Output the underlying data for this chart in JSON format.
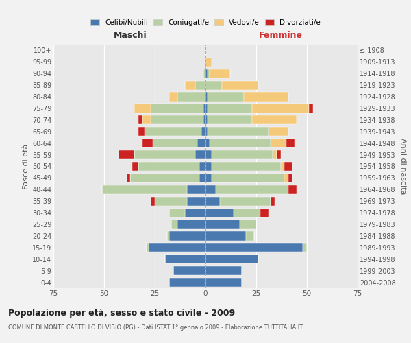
{
  "age_groups": [
    "100+",
    "95-99",
    "90-94",
    "85-89",
    "80-84",
    "75-79",
    "70-74",
    "65-69",
    "60-64",
    "55-59",
    "50-54",
    "45-49",
    "40-44",
    "35-39",
    "30-34",
    "25-29",
    "20-24",
    "15-19",
    "10-14",
    "5-9",
    "0-4"
  ],
  "birth_years": [
    "≤ 1908",
    "1909-1913",
    "1914-1918",
    "1919-1923",
    "1924-1928",
    "1929-1933",
    "1934-1938",
    "1939-1943",
    "1944-1948",
    "1949-1953",
    "1954-1958",
    "1959-1963",
    "1964-1968",
    "1969-1973",
    "1974-1978",
    "1979-1983",
    "1984-1988",
    "1989-1993",
    "1994-1998",
    "1999-2003",
    "2004-2008"
  ],
  "colors": {
    "celibi": "#4a79b0",
    "coniugati": "#b8cfa4",
    "vedovi": "#f5c97a",
    "divorziati": "#cc2222"
  },
  "maschi": {
    "celibi": [
      0,
      0,
      0,
      0,
      0,
      1,
      1,
      2,
      4,
      5,
      3,
      3,
      9,
      9,
      10,
      14,
      18,
      28,
      20,
      16,
      18
    ],
    "coniugati": [
      0,
      0,
      1,
      5,
      14,
      26,
      26,
      28,
      22,
      30,
      30,
      34,
      42,
      16,
      8,
      3,
      1,
      1,
      0,
      0,
      0
    ],
    "vedovi": [
      0,
      0,
      0,
      5,
      4,
      8,
      4,
      0,
      0,
      0,
      0,
      0,
      0,
      0,
      0,
      0,
      0,
      0,
      0,
      0,
      0
    ],
    "divorziati": [
      0,
      0,
      0,
      0,
      0,
      0,
      2,
      3,
      5,
      8,
      3,
      2,
      0,
      2,
      0,
      0,
      0,
      0,
      0,
      0,
      0
    ]
  },
  "femmine": {
    "celibi": [
      0,
      0,
      1,
      0,
      1,
      1,
      1,
      1,
      2,
      3,
      3,
      3,
      5,
      7,
      14,
      17,
      20,
      48,
      26,
      18,
      18
    ],
    "coniugati": [
      0,
      0,
      1,
      8,
      18,
      22,
      22,
      30,
      30,
      30,
      34,
      36,
      36,
      25,
      13,
      8,
      4,
      2,
      0,
      0,
      0
    ],
    "vedovi": [
      0,
      3,
      10,
      18,
      22,
      28,
      22,
      10,
      8,
      2,
      2,
      2,
      0,
      0,
      0,
      0,
      0,
      0,
      0,
      0,
      0
    ],
    "divorziati": [
      0,
      0,
      0,
      0,
      0,
      2,
      0,
      0,
      4,
      2,
      4,
      2,
      4,
      2,
      4,
      0,
      0,
      0,
      0,
      0,
      0
    ]
  },
  "title": "Popolazione per età, sesso e stato civile - 2009",
  "subtitle": "COMUNE DI MONTE CASTELLO DI VIBIO (PG) - Dati ISTAT 1° gennaio 2009 - Elaborazione TUTTITALIA.IT",
  "xlabel_left": "Maschi",
  "xlabel_right": "Femmine",
  "ylabel_left": "Fasce di età",
  "ylabel_right": "Anni di nascita",
  "xlim": 75,
  "legend_labels": [
    "Celibi/Nubili",
    "Coniugati/e",
    "Vedovi/e",
    "Divorziati/e"
  ],
  "bg_color": "#f2f2f2",
  "plot_bg": "#e8e8e8"
}
